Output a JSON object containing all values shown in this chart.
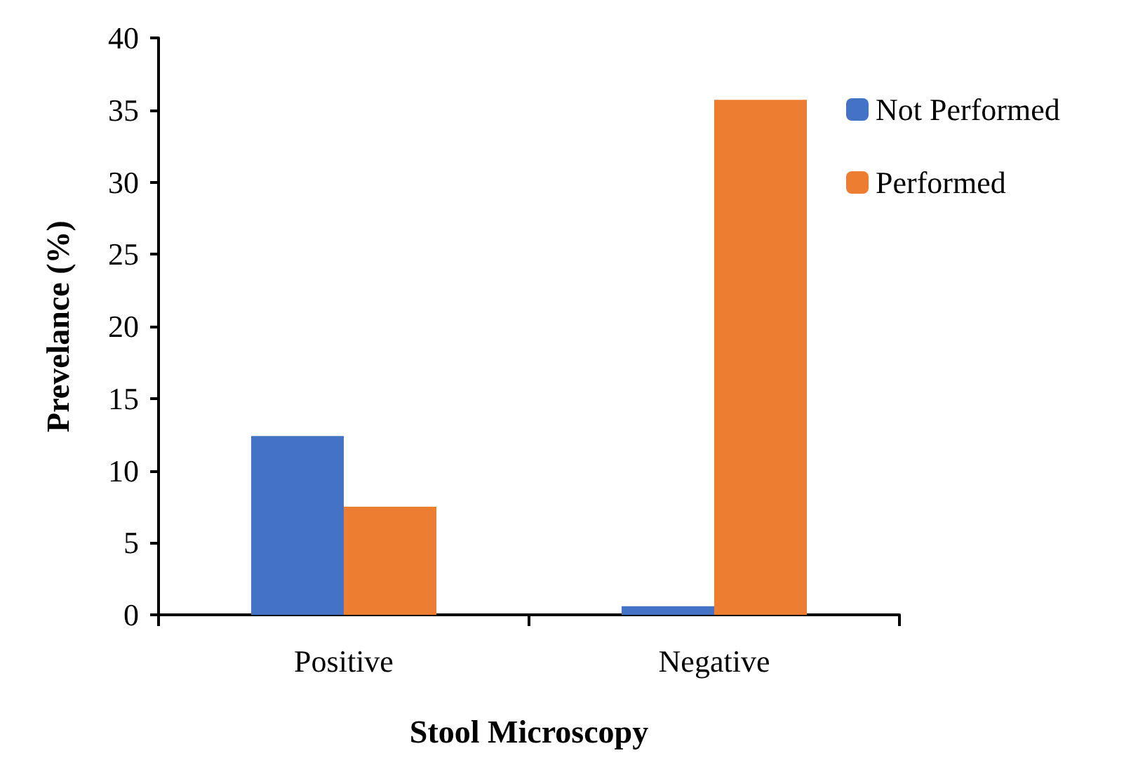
{
  "chart_data": {
    "type": "bar",
    "xlabel": "Stool Microscopy",
    "ylabel": "Prevelance (%)",
    "categories": [
      "Positive",
      "Negative"
    ],
    "series": [
      {
        "name": "Not Performed",
        "color": "#4472c4",
        "values": [
          12.4,
          0.6
        ]
      },
      {
        "name": "Performed",
        "color": "#ed7d31",
        "values": [
          7.5,
          35.7
        ]
      }
    ],
    "ylim": [
      0,
      40
    ],
    "yticks": [
      0,
      5,
      10,
      15,
      20,
      25,
      30,
      35,
      40
    ],
    "grid": false,
    "legend": "top right"
  }
}
